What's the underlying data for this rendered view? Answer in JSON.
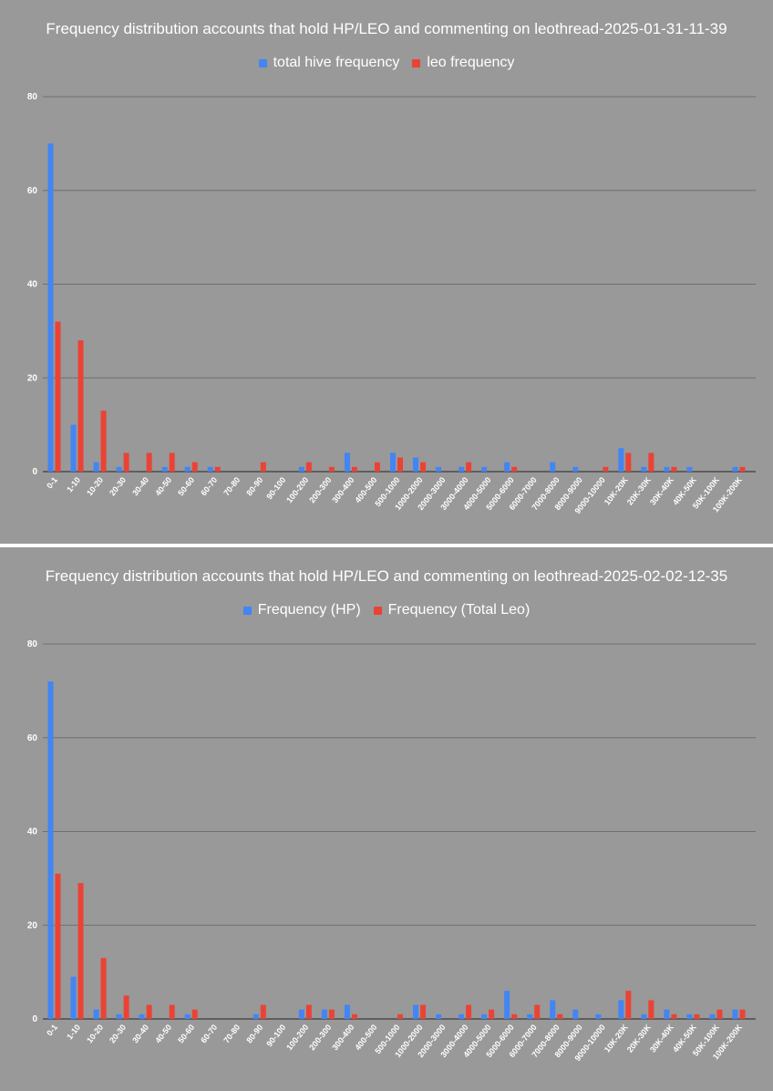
{
  "chart_data": [
    {
      "type": "bar",
      "title": "Frequency distribution accounts that hold HP/LEO and commenting on leothread-2025-01-31-11-39",
      "xlabel": "",
      "ylabel": "",
      "ylim": [
        0,
        80
      ],
      "yticks": [
        "0",
        "20",
        "40",
        "60",
        "80"
      ],
      "grid": true,
      "legend_position": "top",
      "categories": [
        "0-1",
        "1-10",
        "10-20",
        "20-30",
        "30-40",
        "40-50",
        "50-60",
        "60-70",
        "70-80",
        "80-90",
        "90-100",
        "100-200",
        "200-300",
        "300-400",
        "400-500",
        "500-1000",
        "1000-2000",
        "2000-3000",
        "3000-4000",
        "4000-5000",
        "5000-6000",
        "6000-7000",
        "7000-8000",
        "8000-9000",
        "9000-10000",
        "10K-20K",
        "20K-30K",
        "30K-40K",
        "40K-50K",
        "50K-100K",
        "100K-200K"
      ],
      "series": [
        {
          "name": "total hive frequency",
          "color": "#4285f4",
          "values": [
            70,
            10,
            2,
            1,
            0,
            1,
            1,
            1,
            0,
            0,
            0,
            1,
            0,
            4,
            0,
            4,
            3,
            1,
            1,
            1,
            2,
            0,
            2,
            1,
            0,
            5,
            1,
            1,
            1,
            0,
            1
          ]
        },
        {
          "name": "leo frequency",
          "color": "#ea4335",
          "values": [
            32,
            28,
            13,
            4,
            4,
            4,
            2,
            1,
            0,
            2,
            0,
            2,
            1,
            1,
            2,
            3,
            2,
            0,
            2,
            0,
            1,
            0,
            0,
            0,
            1,
            4,
            4,
            1,
            0,
            0,
            1
          ]
        }
      ]
    },
    {
      "type": "bar",
      "title": "Frequency distribution accounts that hold HP/LEO and commenting on leothread-2025-02-02-12-35",
      "xlabel": "",
      "ylabel": "",
      "ylim": [
        0,
        80
      ],
      "yticks": [
        "0",
        "20",
        "40",
        "60",
        "80"
      ],
      "grid": true,
      "legend_position": "top",
      "categories": [
        "0-1",
        "1-10",
        "10-20",
        "20-30",
        "30-40",
        "40-50",
        "50-60",
        "60-70",
        "70-80",
        "80-90",
        "90-100",
        "100-200",
        "200-300",
        "300-400",
        "400-500",
        "500-1000",
        "1000-2000",
        "2000-3000",
        "3000-4000",
        "4000-5000",
        "5000-6000",
        "6000-7000",
        "7000-8000",
        "8000-9000",
        "9000-10000",
        "10K-20K",
        "20K-30K",
        "30K-40K",
        "40K-50K",
        "50K-100K",
        "100K-200K"
      ],
      "series": [
        {
          "name": "Frequency (HP)",
          "color": "#4285f4",
          "values": [
            72,
            9,
            2,
            1,
            1,
            0,
            1,
            0,
            0,
            1,
            0,
            2,
            2,
            3,
            0,
            0,
            3,
            1,
            1,
            1,
            6,
            1,
            4,
            2,
            1,
            4,
            1,
            2,
            1,
            1,
            2
          ]
        },
        {
          "name": "Frequency (Total Leo)",
          "color": "#ea4335",
          "values": [
            31,
            29,
            13,
            5,
            3,
            3,
            2,
            0,
            0,
            3,
            0,
            3,
            2,
            1,
            0,
            1,
            3,
            0,
            3,
            2,
            1,
            3,
            1,
            0,
            0,
            6,
            4,
            1,
            1,
            2,
            2
          ]
        }
      ]
    }
  ]
}
